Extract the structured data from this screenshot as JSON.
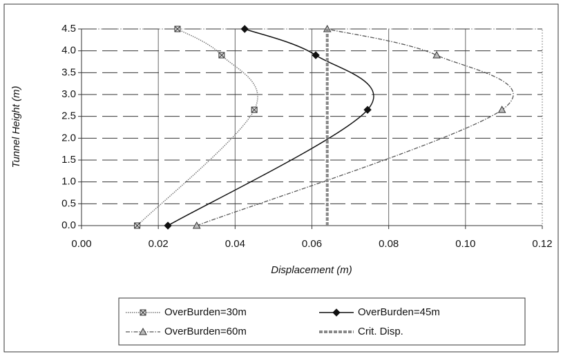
{
  "chart_data": {
    "type": "scatter",
    "x_label": "Displacement (m)",
    "y_label": "Tunnel Height (m)",
    "xlim": [
      0,
      0.12
    ],
    "ylim": [
      0,
      4.5
    ],
    "xticks": [
      {
        "value": 0,
        "label": "0.00"
      },
      0.02,
      0.04,
      0.06,
      0.08,
      {
        "value": 0.1,
        "label": "0.10"
      },
      0.12
    ],
    "yticks": [
      {
        "value": 0,
        "label": "0.0"
      },
      0.5,
      {
        "value": 1,
        "label": "1.0"
      },
      1.5,
      {
        "value": 2,
        "label": "2.0"
      },
      2.5,
      {
        "value": 3,
        "label": "3.0"
      },
      3.5,
      {
        "value": 4,
        "label": "4.0"
      },
      4.5
    ],
    "grid": true,
    "legend": "bottom",
    "series": [
      {
        "name": "OverBurden=30m",
        "color": "#777777",
        "line_style": "dotted",
        "marker": "x-square",
        "smooth": true,
        "x": [
          0.0145,
          0.045,
          0.0365,
          0.025
        ],
        "y": [
          0,
          2.65,
          3.9,
          4.5
        ]
      },
      {
        "name": "OverBurden=45m",
        "color": "#111111",
        "line_style": "solid",
        "marker": "diamond",
        "smooth": true,
        "x": [
          0.0225,
          0.0745,
          0.061,
          0.0425
        ],
        "y": [
          0,
          2.65,
          3.9,
          4.5
        ]
      },
      {
        "name": "OverBurden=60m",
        "color": "#555555",
        "line_style": "dashdot",
        "marker": "triangle",
        "smooth": true,
        "x": [
          0.03,
          0.1095,
          0.0925,
          0.064
        ],
        "y": [
          0,
          2.65,
          3.9,
          4.5
        ]
      },
      {
        "name": "Crit. Disp.",
        "color": "#888888",
        "line_style": "dashed",
        "marker": "none",
        "smooth": false,
        "x": [
          0.064,
          0.064
        ],
        "y": [
          0,
          4.5
        ]
      }
    ]
  }
}
